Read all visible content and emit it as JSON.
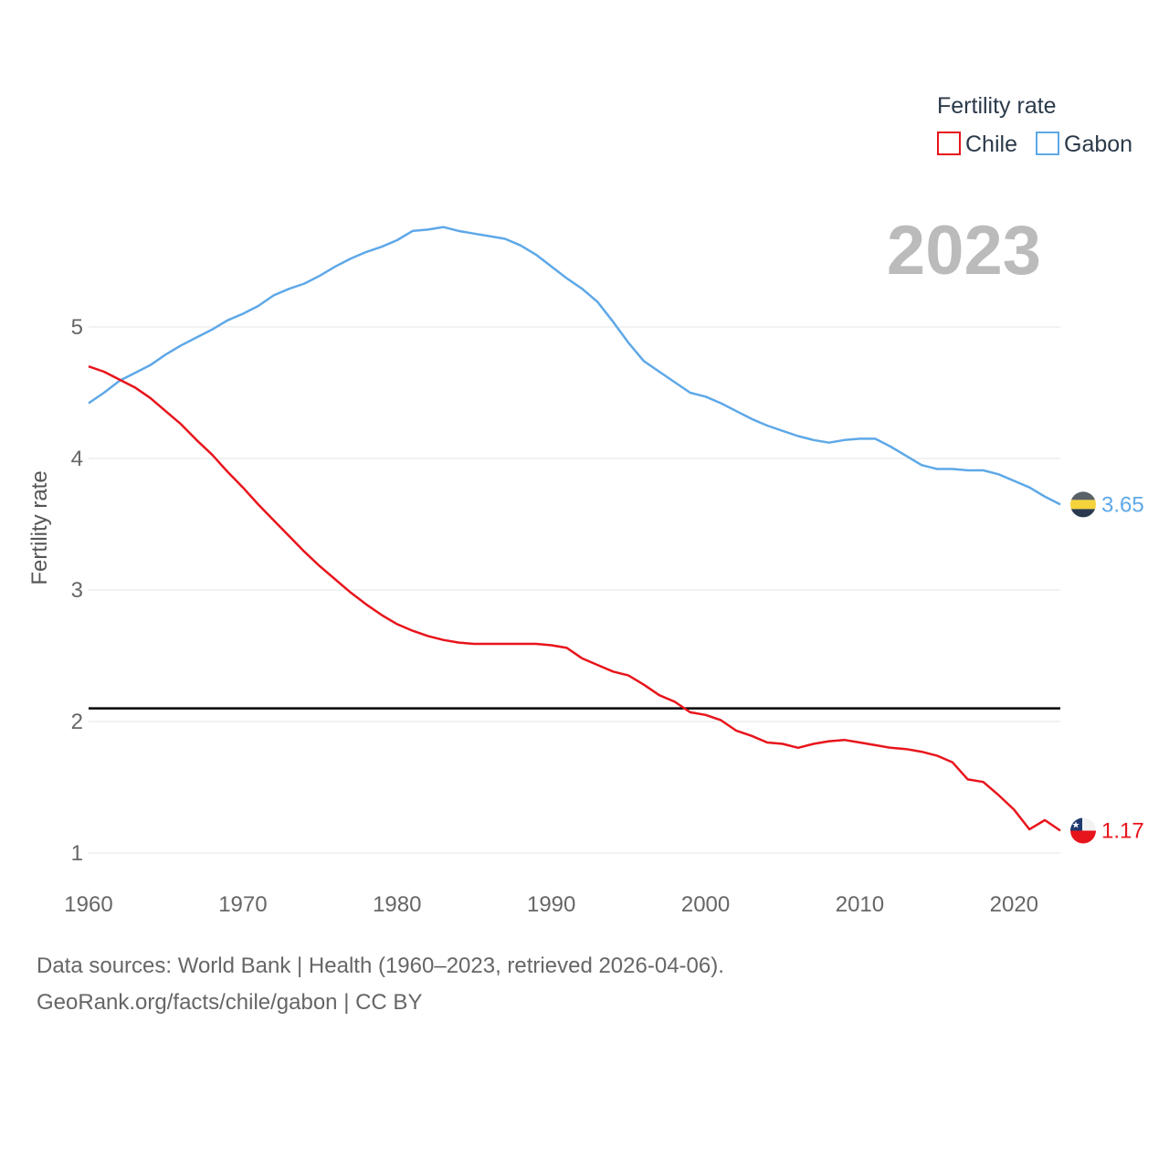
{
  "chart_data": {
    "type": "line",
    "year_label": "2023",
    "ylabel": "Fertility rate",
    "xlabel": "",
    "xlim": [
      1960,
      2023
    ],
    "ylim": [
      1,
      5.8
    ],
    "yticks": [
      1,
      2,
      3,
      4,
      5
    ],
    "xticks": [
      1960,
      1970,
      1980,
      1990,
      2000,
      2010,
      2020
    ],
    "reference_line": 2.1,
    "legend": {
      "title": "Fertility rate",
      "position": "top-right"
    },
    "x": [
      1960,
      1961,
      1962,
      1963,
      1964,
      1965,
      1966,
      1967,
      1968,
      1969,
      1970,
      1971,
      1972,
      1973,
      1974,
      1975,
      1976,
      1977,
      1978,
      1979,
      1980,
      1981,
      1982,
      1983,
      1984,
      1985,
      1986,
      1987,
      1988,
      1989,
      1990,
      1991,
      1992,
      1993,
      1994,
      1995,
      1996,
      1997,
      1998,
      1999,
      2000,
      2001,
      2002,
      2003,
      2004,
      2005,
      2006,
      2007,
      2008,
      2009,
      2010,
      2011,
      2012,
      2013,
      2014,
      2015,
      2016,
      2017,
      2018,
      2019,
      2020,
      2021,
      2022,
      2023
    ],
    "series": [
      {
        "name": "Chile",
        "color": "#e8141b",
        "end_label": "1.17",
        "values": [
          4.7,
          4.66,
          4.6,
          4.54,
          4.46,
          4.36,
          4.26,
          4.14,
          4.03,
          3.9,
          3.78,
          3.65,
          3.53,
          3.41,
          3.29,
          3.18,
          3.08,
          2.98,
          2.89,
          2.81,
          2.74,
          2.69,
          2.65,
          2.62,
          2.6,
          2.59,
          2.59,
          2.59,
          2.59,
          2.59,
          2.58,
          2.56,
          2.48,
          2.43,
          2.38,
          2.35,
          2.28,
          2.2,
          2.15,
          2.07,
          2.05,
          2.01,
          1.93,
          1.89,
          1.84,
          1.83,
          1.8,
          1.83,
          1.85,
          1.86,
          1.84,
          1.82,
          1.8,
          1.79,
          1.77,
          1.74,
          1.69,
          1.56,
          1.54,
          1.44,
          1.33,
          1.18,
          1.25,
          1.17
        ]
      },
      {
        "name": "Gabon",
        "color": "#5ea8e8",
        "end_label": "3.65",
        "values": [
          4.42,
          4.5,
          4.59,
          4.65,
          4.71,
          4.79,
          4.86,
          4.92,
          4.98,
          5.05,
          5.1,
          5.16,
          5.24,
          5.29,
          5.33,
          5.39,
          5.46,
          5.52,
          5.57,
          5.61,
          5.66,
          5.73,
          5.74,
          5.76,
          5.73,
          5.71,
          5.69,
          5.67,
          5.62,
          5.55,
          5.46,
          5.37,
          5.29,
          5.19,
          5.04,
          4.88,
          4.74,
          4.66,
          4.58,
          4.5,
          4.47,
          4.42,
          4.36,
          4.3,
          4.25,
          4.21,
          4.17,
          4.14,
          4.12,
          4.14,
          4.15,
          4.15,
          4.09,
          4.02,
          3.95,
          3.92,
          3.92,
          3.91,
          3.91,
          3.88,
          3.83,
          3.78,
          3.71,
          3.65
        ]
      }
    ]
  },
  "footer": {
    "sources": "Data sources: World Bank | Health (1960–2023, retrieved 2026-04-06).",
    "credit": "GeoRank.org/facts/chile/gabon | CC BY"
  }
}
